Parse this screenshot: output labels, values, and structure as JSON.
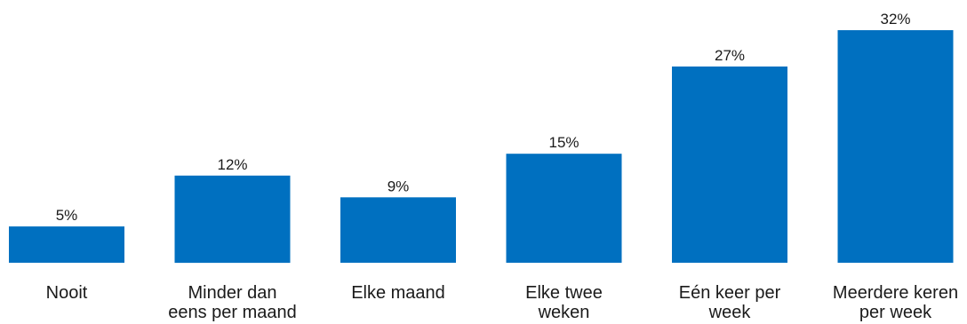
{
  "chart_data": {
    "type": "bar",
    "title": "",
    "xlabel": "",
    "ylabel": "",
    "categories": [
      [
        "Nooit"
      ],
      [
        "Minder dan",
        "eens per maand"
      ],
      [
        "Elke maand"
      ],
      [
        "Elke twee",
        "weken"
      ],
      [
        "Eén keer per",
        "week"
      ],
      [
        "Meerdere keren",
        "per week"
      ]
    ],
    "values": [
      5,
      12,
      9,
      15,
      27,
      32
    ],
    "value_labels": [
      "5%",
      "12%",
      "9%",
      "15%",
      "27%",
      "32%"
    ],
    "unit": "%",
    "ylim": [
      0,
      32
    ],
    "grid": false,
    "legend": "none",
    "bar_color": "#0070C0"
  }
}
